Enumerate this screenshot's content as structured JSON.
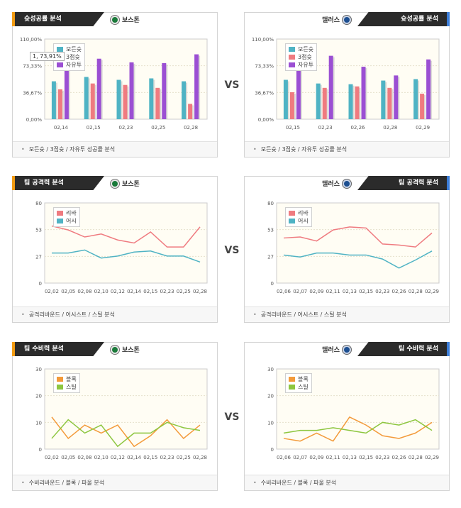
{
  "vs_label": "VS",
  "colors": {
    "teal": "#4fb3c4",
    "red": "#ef7b80",
    "purple": "#9b4fd3",
    "line_red": "#ef7b80",
    "line_blue": "#4fb3c4",
    "orange": "#f39a3a",
    "green": "#8dc63f"
  },
  "rows": [
    {
      "left": {
        "tab": "슛성공률 분석",
        "team": "보스톤",
        "logo": "celtics-logo-icon",
        "footer": "모든슛 / 3점슛 / 자유투 성공률 분석",
        "tooltip": "1, 73,91%"
      },
      "right": {
        "tab": "슛성공률 분석",
        "team": "댈러스",
        "logo": "mavericks-logo-icon",
        "footer": "모든슛 / 3점슛 / 자유투 성공률 분석"
      }
    },
    {
      "left": {
        "tab": "팀 공격력 분석",
        "team": "보스톤",
        "logo": "celtics-logo-icon",
        "footer": "공격리바운드 / 어시스트 / 스틸 분석"
      },
      "right": {
        "tab": "팀 공격력 분석",
        "team": "댈러스",
        "logo": "mavericks-logo-icon",
        "footer": "공격리바운드 / 어시스트 / 스틸 분석"
      }
    },
    {
      "left": {
        "tab": "팀 수비력 분석",
        "team": "보스톤",
        "logo": "celtics-logo-icon",
        "footer": "수비리바운드 / 블록 / 파울 분석"
      },
      "right": {
        "tab": "팀 수비력 분석",
        "team": "댈러스",
        "logo": "mavericks-logo-icon",
        "footer": "수비리바운드 / 블록 / 파울 분석"
      }
    }
  ],
  "chart_data": [
    {
      "id": "boston-shooting",
      "type": "bar",
      "categories": [
        "02,14",
        "02,15",
        "02,23",
        "02,25",
        "02,28"
      ],
      "ticks": [
        "110,00%",
        "73,33%",
        "36,67%",
        "0,00%"
      ],
      "ylim": [
        0,
        110
      ],
      "series": [
        {
          "name": "모든슛",
          "color": "#4fb3c4",
          "values": [
            52,
            58,
            54,
            56,
            52
          ]
        },
        {
          "name": "3점슛",
          "color": "#ef7b80",
          "values": [
            41,
            49,
            47,
            43,
            21
          ]
        },
        {
          "name": "자유투",
          "color": "#9b4fd3",
          "values": [
            74,
            83,
            78,
            77,
            89
          ]
        }
      ],
      "legend": "top-left"
    },
    {
      "id": "dallas-shooting",
      "type": "bar",
      "categories": [
        "02,15",
        "02,23",
        "02,26",
        "02,28",
        "02,29"
      ],
      "ticks": [
        "110,00%",
        "73,33%",
        "36,67%",
        "0,00%"
      ],
      "ylim": [
        0,
        110
      ],
      "series": [
        {
          "name": "모든슛",
          "color": "#4fb3c4",
          "values": [
            54,
            49,
            48,
            53,
            55
          ]
        },
        {
          "name": "3점슛",
          "color": "#ef7b80",
          "values": [
            37,
            43,
            45,
            43,
            35
          ]
        },
        {
          "name": "자유투",
          "color": "#9b4fd3",
          "values": [
            100,
            87,
            72,
            60,
            82
          ]
        }
      ],
      "legend": "top-left"
    },
    {
      "id": "boston-offense",
      "type": "line",
      "categories": [
        "02,02",
        "02,05",
        "02,08",
        "02,10",
        "02,12",
        "02,14",
        "02,15",
        "02,23",
        "02,25",
        "02,28"
      ],
      "ticks": [
        "80",
        "53",
        "27",
        "0"
      ],
      "ylim": [
        0,
        80
      ],
      "series": [
        {
          "name": "리바",
          "color": "#ef7b80",
          "values": [
            57,
            53,
            46,
            49,
            43,
            40,
            51,
            36,
            36,
            56
          ]
        },
        {
          "name": "어시",
          "color": "#4fb3c4",
          "values": [
            30,
            30,
            33,
            25,
            27,
            31,
            32,
            27,
            27,
            21
          ]
        }
      ],
      "legend": "top-left"
    },
    {
      "id": "dallas-offense",
      "type": "line",
      "categories": [
        "02,06",
        "02,07",
        "02,09",
        "02,11",
        "02,13",
        "02,15",
        "02,23",
        "02,26",
        "02,28",
        "02,29"
      ],
      "ticks": [
        "80",
        "53",
        "27",
        "0"
      ],
      "ylim": [
        0,
        80
      ],
      "series": [
        {
          "name": "리바",
          "color": "#ef7b80",
          "values": [
            45,
            46,
            42,
            53,
            56,
            55,
            39,
            38,
            36,
            50
          ]
        },
        {
          "name": "어시",
          "color": "#4fb3c4",
          "values": [
            28,
            26,
            30,
            30,
            28,
            28,
            24,
            15,
            23,
            32
          ]
        }
      ],
      "legend": "top-left"
    },
    {
      "id": "boston-defense",
      "type": "line",
      "categories": [
        "02,02",
        "02,05",
        "02,08",
        "02,10",
        "02,12",
        "02,14",
        "02,15",
        "02,23",
        "02,25",
        "02,28"
      ],
      "ticks": [
        "30",
        "20",
        "10",
        "0"
      ],
      "ylim": [
        0,
        30
      ],
      "series": [
        {
          "name": "블록",
          "color": "#f39a3a",
          "values": [
            12,
            4,
            9,
            6,
            9,
            1,
            5,
            11,
            4,
            9
          ]
        },
        {
          "name": "스틸",
          "color": "#8dc63f",
          "values": [
            4,
            11,
            6,
            9,
            1,
            6,
            6,
            10,
            8,
            7
          ]
        }
      ],
      "legend": "top-left"
    },
    {
      "id": "dallas-defense",
      "type": "line",
      "categories": [
        "02,06",
        "02,07",
        "02,09",
        "02,11",
        "02,13",
        "02,15",
        "02,23",
        "02,26",
        "02,28",
        "02,29"
      ],
      "ticks": [
        "30",
        "20",
        "10",
        "0"
      ],
      "ylim": [
        0,
        30
      ],
      "series": [
        {
          "name": "블록",
          "color": "#f39a3a",
          "values": [
            4,
            3,
            6,
            3,
            12,
            9,
            5,
            4,
            6,
            10
          ]
        },
        {
          "name": "스틸",
          "color": "#8dc63f",
          "values": [
            6,
            7,
            7,
            8,
            7,
            6,
            10,
            9,
            11,
            7
          ]
        }
      ],
      "legend": "top-left"
    }
  ]
}
